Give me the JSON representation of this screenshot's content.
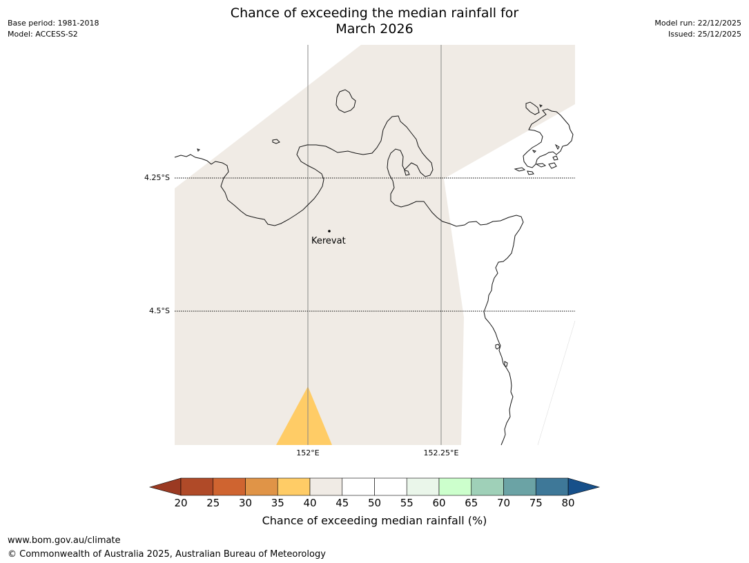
{
  "title": "Chance of exceeding the median rainfall for\nMarch 2026",
  "meta_left": {
    "base_period": "Base period: 1981-2018",
    "model": "Model: ACCESS-S2"
  },
  "meta_right": {
    "model_run": "Model run: 22/12/2025",
    "issued": "Issued: 25/12/2025"
  },
  "map": {
    "lat_labels": [
      "4.25°S",
      "4.5°S"
    ],
    "lon_labels": [
      "152°E",
      "152.25°E"
    ],
    "place": {
      "name": "Kerevat"
    },
    "fill_colors": {
      "land_category": "#f0ebe5",
      "low_category": "#ffcc66"
    }
  },
  "colorbar": {
    "title": "Chance of exceeding median rainfall (%)",
    "ticks": [
      "20",
      "25",
      "30",
      "35",
      "40",
      "45",
      "50",
      "55",
      "60",
      "65",
      "70",
      "75",
      "80"
    ],
    "colors": [
      "#b04a28",
      "#cf6430",
      "#e09447",
      "#ffcc66",
      "#f0ebe5",
      "#ffffff",
      "#ffffff",
      "#eaf6ea",
      "#ccffcc",
      "#9fd0b8",
      "#6ba3a5",
      "#3e7898"
    ],
    "under_color": "#9b3a22",
    "over_color": "#17508a"
  },
  "footer": {
    "url": "www.bom.gov.au/climate",
    "copyright": "© Commonwealth of Australia 2025, Australian Bureau of Meteorology"
  }
}
